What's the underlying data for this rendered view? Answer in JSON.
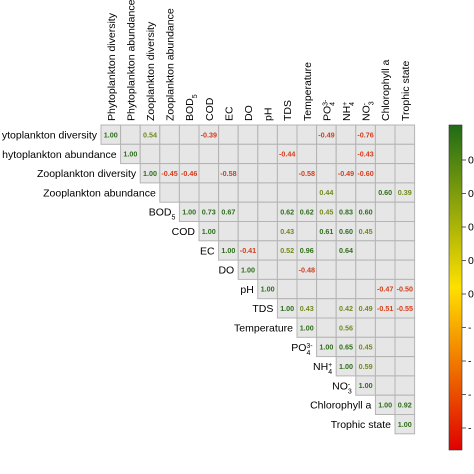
{
  "chart_data": {
    "type": "heatmap",
    "title": "",
    "variables": [
      {
        "name": "Phytoplankton diversity",
        "row_label": "ytoplankton diversity"
      },
      {
        "name": "Phytoplankton abundance",
        "row_label": "hytoplankton abundance"
      },
      {
        "name": "Zooplankton diversity",
        "row_label": "Zooplankton diversity"
      },
      {
        "name": "Zooplankton abundance",
        "row_label": "Zooplankton abundance"
      },
      {
        "name": "BOD5",
        "base": "BOD",
        "sub": "5",
        "row_label": "BOD5"
      },
      {
        "name": "COD",
        "row_label": "COD"
      },
      {
        "name": "EC",
        "row_label": "EC"
      },
      {
        "name": "DO",
        "row_label": "DO"
      },
      {
        "name": "pH",
        "row_label": "pH"
      },
      {
        "name": "TDS",
        "row_label": "TDS"
      },
      {
        "name": "Temperature",
        "row_label": "Temperature"
      },
      {
        "name": "PO43-",
        "base": "PO",
        "sub": "4",
        "sup": "3-",
        "row_label": "PO43-"
      },
      {
        "name": "NH4+",
        "base": "NH",
        "sub": "4",
        "sup": "+",
        "row_label": "NH4+"
      },
      {
        "name": "NO3-",
        "base": "NO",
        "sub": "3",
        "sup": "-",
        "row_label": "NO3-"
      },
      {
        "name": "Chlorophyll a",
        "row_label": "Chlorophyll a"
      },
      {
        "name": "Trophic state",
        "row_label": "Trophic state"
      }
    ],
    "cells": [
      {
        "r": 0,
        "c": 0,
        "v": 1.0
      },
      {
        "r": 0,
        "c": 2,
        "v": 0.54
      },
      {
        "r": 0,
        "c": 5,
        "v": -0.39
      },
      {
        "r": 0,
        "c": 11,
        "v": -0.49
      },
      {
        "r": 0,
        "c": 13,
        "v": -0.76
      },
      {
        "r": 1,
        "c": 1,
        "v": 1.0
      },
      {
        "r": 1,
        "c": 9,
        "v": -0.44
      },
      {
        "r": 1,
        "c": 13,
        "v": -0.43
      },
      {
        "r": 2,
        "c": 2,
        "v": 1.0
      },
      {
        "r": 2,
        "c": 3,
        "v": -0.45
      },
      {
        "r": 2,
        "c": 4,
        "v": -0.46
      },
      {
        "r": 2,
        "c": 6,
        "v": -0.58
      },
      {
        "r": 2,
        "c": 10,
        "v": -0.58
      },
      {
        "r": 2,
        "c": 12,
        "v": -0.49
      },
      {
        "r": 2,
        "c": 13,
        "v": -0.6
      },
      {
        "r": 3,
        "c": 11,
        "v": 0.44
      },
      {
        "r": 3,
        "c": 14,
        "v": 0.6
      },
      {
        "r": 3,
        "c": 15,
        "v": 0.39
      },
      {
        "r": 4,
        "c": 4,
        "v": 1.0
      },
      {
        "r": 4,
        "c": 5,
        "v": 0.73
      },
      {
        "r": 4,
        "c": 6,
        "v": 0.67
      },
      {
        "r": 4,
        "c": 9,
        "v": 0.62
      },
      {
        "r": 4,
        "c": 10,
        "v": 0.62
      },
      {
        "r": 4,
        "c": 11,
        "v": 0.45
      },
      {
        "r": 4,
        "c": 12,
        "v": 0.83
      },
      {
        "r": 4,
        "c": 13,
        "v": 0.6
      },
      {
        "r": 5,
        "c": 5,
        "v": 1.0
      },
      {
        "r": 5,
        "c": 9,
        "v": 0.43
      },
      {
        "r": 5,
        "c": 11,
        "v": 0.61
      },
      {
        "r": 5,
        "c": 12,
        "v": 0.6
      },
      {
        "r": 5,
        "c": 13,
        "v": 0.45
      },
      {
        "r": 6,
        "c": 6,
        "v": 1.0
      },
      {
        "r": 6,
        "c": 7,
        "v": -0.41
      },
      {
        "r": 6,
        "c": 9,
        "v": 0.52
      },
      {
        "r": 6,
        "c": 10,
        "v": 0.96
      },
      {
        "r": 6,
        "c": 12,
        "v": 0.64
      },
      {
        "r": 7,
        "c": 7,
        "v": 1.0
      },
      {
        "r": 7,
        "c": 10,
        "v": -0.48
      },
      {
        "r": 8,
        "c": 8,
        "v": 1.0
      },
      {
        "r": 8,
        "c": 14,
        "v": -0.47
      },
      {
        "r": 8,
        "c": 15,
        "v": -0.5
      },
      {
        "r": 9,
        "c": 9,
        "v": 1.0
      },
      {
        "r": 9,
        "c": 10,
        "v": 0.43
      },
      {
        "r": 9,
        "c": 12,
        "v": 0.42
      },
      {
        "r": 9,
        "c": 13,
        "v": 0.49
      },
      {
        "r": 9,
        "c": 14,
        "v": -0.51
      },
      {
        "r": 9,
        "c": 15,
        "v": -0.55
      },
      {
        "r": 10,
        "c": 10,
        "v": 1.0
      },
      {
        "r": 10,
        "c": 12,
        "v": 0.56
      },
      {
        "r": 11,
        "c": 11,
        "v": 1.0
      },
      {
        "r": 11,
        "c": 12,
        "v": 0.65
      },
      {
        "r": 11,
        "c": 13,
        "v": 0.45
      },
      {
        "r": 12,
        "c": 12,
        "v": 1.0
      },
      {
        "r": 12,
        "c": 13,
        "v": 0.59
      },
      {
        "r": 13,
        "c": 13,
        "v": 1.0
      },
      {
        "r": 14,
        "c": 14,
        "v": 1.0
      },
      {
        "r": 14,
        "c": 15,
        "v": 0.92
      },
      {
        "r": 15,
        "c": 15,
        "v": 1.0
      }
    ],
    "colorbar": {
      "range": [
        -1,
        1
      ],
      "colors": {
        "high": "#1f6b16",
        "mid": "#ffe000",
        "low": "#e00000"
      },
      "tick_labels": [
        "0",
        "0",
        "0",
        "0",
        "0",
        "-",
        "-",
        "-",
        "-"
      ]
    },
    "colors": {
      "positive_text": "#2e6e1a",
      "positive_mid_text": "#6f8a1c",
      "negative_text": "#d63c1a",
      "cell_fill": "#e6e6e6",
      "grid": "#b4b4b4"
    }
  }
}
